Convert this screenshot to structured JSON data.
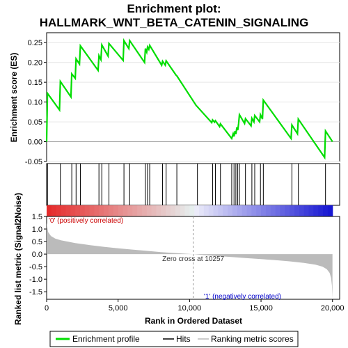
{
  "chart_data": {
    "type": "line",
    "title_line1": "Enrichment plot:",
    "title_line2": "HALLMARK_WNT_BETA_CATENIN_SIGNALING",
    "top_panel": {
      "ylabel": "Enrichment score (ES)",
      "ylim": [
        -0.05,
        0.275
      ],
      "yticks": [
        "0.25",
        "0.20",
        "0.15",
        "0.10",
        "0.05",
        "0.00",
        "-0.05"
      ],
      "ytick_values": [
        0.25,
        0.2,
        0.15,
        0.1,
        0.05,
        0.0,
        -0.05
      ],
      "xlim": [
        0,
        20500
      ],
      "series": [
        {
          "name": "Enrichment profile",
          "color": "#00dd00",
          "x": [
            0,
            60,
            900,
            960,
            1700,
            1760,
            2000,
            2060,
            2300,
            2360,
            3600,
            3660,
            3800,
            3860,
            4300,
            4360,
            5350,
            5410,
            5750,
            5810,
            6850,
            6910,
            7000,
            7060,
            7150,
            7210,
            8050,
            8110,
            8300,
            8360,
            9050,
            9110,
            10450,
            11550,
            11610,
            11750,
            11810,
            12100,
            12160,
            12950,
            13050,
            13110,
            13180,
            13240,
            13310,
            13370,
            13430,
            13490,
            13850,
            13910,
            14300,
            14360,
            14500,
            14560,
            14900,
            14960,
            15100,
            15160,
            17100,
            17160,
            17550,
            17610,
            19450,
            19510,
            20000
          ],
          "y": [
            0.0,
            0.122,
            0.08,
            0.152,
            0.113,
            0.171,
            0.16,
            0.209,
            0.196,
            0.242,
            0.18,
            0.217,
            0.207,
            0.244,
            0.216,
            0.248,
            0.205,
            0.255,
            0.235,
            0.255,
            0.2,
            0.235,
            0.226,
            0.239,
            0.233,
            0.243,
            0.193,
            0.203,
            0.193,
            0.204,
            0.168,
            0.166,
            0.092,
            0.048,
            0.055,
            0.049,
            0.053,
            0.038,
            0.045,
            0.008,
            0.02,
            0.013,
            0.027,
            0.019,
            0.036,
            0.029,
            0.045,
            0.068,
            0.046,
            0.058,
            0.04,
            0.059,
            0.05,
            0.066,
            0.05,
            0.068,
            0.057,
            0.105,
            0.008,
            0.042,
            0.02,
            0.057,
            -0.04,
            0.027,
            0.0
          ]
        }
      ]
    },
    "hits_panel": {
      "hit_positions": [
        60,
        960,
        1760,
        2060,
        2360,
        3660,
        3860,
        4360,
        5410,
        5810,
        6910,
        7060,
        7210,
        8110,
        8360,
        9110,
        10550,
        11610,
        11810,
        12160,
        12950,
        13110,
        13240,
        13370,
        13490,
        13910,
        14360,
        14560,
        14960,
        15160,
        17160,
        17610,
        19510
      ]
    },
    "bottom_panel": {
      "ylabel": "Ranked list metric (Signal2Noise)",
      "ylim": [
        -1.8,
        1.5
      ],
      "yticks": [
        "1.5",
        "1.0",
        "0.5",
        "0.0",
        "-0.5",
        "-1.0",
        "-1.5"
      ],
      "ytick_values": [
        1.5,
        1.0,
        0.5,
        0.0,
        -0.5,
        -1.0,
        -1.5
      ],
      "xlabel": "Rank in Ordered Dataset",
      "xticks": [
        "0",
        "5,000",
        "10,000",
        "15,000",
        "20,000"
      ],
      "xtick_values": [
        0,
        5000,
        10000,
        15000,
        20000
      ],
      "metric_curve": {
        "x": [
          0,
          100,
          300,
          600,
          1000,
          2000,
          3000,
          4000,
          5000,
          6000,
          7000,
          8000,
          9000,
          10257,
          11000,
          12000,
          13000,
          14000,
          15000,
          16000,
          17000,
          18000,
          18800,
          19300,
          19600,
          19800,
          19900,
          19960,
          20000
        ],
        "y": [
          1.25,
          0.88,
          0.72,
          0.62,
          0.55,
          0.44,
          0.36,
          0.29,
          0.23,
          0.18,
          0.13,
          0.08,
          0.04,
          0.0,
          -0.04,
          -0.08,
          -0.12,
          -0.16,
          -0.2,
          -0.24,
          -0.29,
          -0.35,
          -0.42,
          -0.5,
          -0.6,
          -0.75,
          -0.95,
          -1.25,
          -1.75
        ]
      },
      "zero_cross_label": "Zero cross at 10257",
      "zero_cross_value": 10257,
      "pos_label": "'0' (positively correlated)",
      "neg_label": "'1' (negatively correlated)"
    },
    "legend": {
      "placement": "bottom",
      "items": [
        {
          "label": "Enrichment profile",
          "color": "#00dd00"
        },
        {
          "label": "Hits",
          "color": "#000000"
        },
        {
          "label": "Ranking metric scores",
          "color": "#bbbbbb"
        }
      ]
    }
  }
}
